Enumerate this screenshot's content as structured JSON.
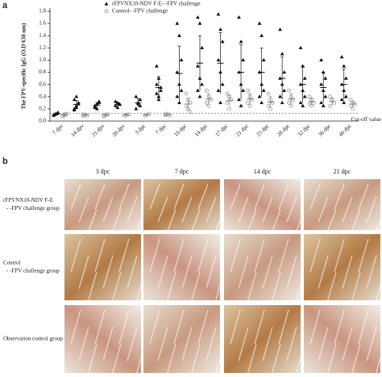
{
  "panel_a_label": "a",
  "chart_data": {
    "type": "dot",
    "ylabel": "The FPV-specific IgG (O.D 630 nm)",
    "categories": [
      "7 dpv",
      "14 dpv",
      "21 dpv",
      "28 dpv",
      "3 dpc",
      "7 dpc",
      "10 dpc",
      "14 dpc",
      "17 dpc",
      "21 dpc",
      "25 dpc",
      "28 dpc",
      "32 dpc",
      "36 dpc",
      "40 dpc"
    ],
    "ylim": [
      0,
      1.8
    ],
    "yticks": [
      {
        "value": 0,
        "label": "0.0"
      },
      0.2,
      0.4,
      0.6,
      0.8,
      {
        "value": 1,
        "label": "1.0"
      },
      1.2,
      1.4,
      1.6,
      1.8
    ],
    "cutoff": {
      "value": 0.13,
      "label": "Cut-off value"
    },
    "series": [
      {
        "name": "rFPVNX10-NDV F-E- -FPV challenge",
        "marker": "triangle",
        "color": "#111111",
        "values": [
          [
            0.1,
            0.12,
            0.14,
            0.09,
            0.11,
            0.13
          ],
          [
            0.2,
            0.25,
            0.3,
            0.35,
            0.22,
            0.28,
            0.18,
            0.4
          ],
          [
            0.22,
            0.28,
            0.3,
            0.25,
            0.2,
            0.32
          ],
          [
            0.25,
            0.3,
            0.28,
            0.32,
            0.22,
            0.27
          ],
          [
            0.2,
            0.3,
            0.35,
            0.4,
            0.28,
            0.25
          ],
          [
            0.9,
            0.7,
            0.5,
            0.45,
            0.4,
            0.55,
            0.6,
            0.35
          ],
          [
            1.6,
            1.4,
            1.0,
            0.8,
            0.6,
            0.5,
            0.4,
            0.3
          ],
          [
            1.7,
            1.6,
            1.2,
            0.9,
            0.7,
            0.6,
            0.5,
            0.4
          ],
          [
            1.75,
            1.5,
            1.3,
            1.0,
            0.8,
            0.6,
            0.5,
            0.3
          ],
          [
            1.7,
            1.3,
            1.0,
            0.8,
            0.6,
            0.5,
            0.35,
            0.25
          ],
          [
            1.6,
            1.4,
            1.0,
            0.8,
            0.6,
            0.5,
            0.4,
            0.3
          ],
          [
            1.5,
            1.1,
            0.8,
            0.7,
            0.6,
            0.5,
            0.4,
            0.3
          ],
          [
            1.2,
            0.9,
            0.7,
            0.6,
            0.5,
            0.4,
            0.3,
            0.25
          ],
          [
            1.0,
            0.8,
            0.7,
            0.6,
            0.5,
            0.4,
            0.3,
            0.25
          ],
          [
            1.05,
            0.9,
            0.7,
            0.6,
            0.5,
            0.4,
            0.35,
            0.3
          ]
        ],
        "means": [
          0.11,
          0.27,
          0.26,
          0.27,
          0.3,
          0.55,
          0.78,
          0.95,
          0.95,
          0.8,
          0.8,
          0.7,
          0.6,
          0.55,
          0.6
        ],
        "errors": [
          0.02,
          0.07,
          0.04,
          0.03,
          0.07,
          0.18,
          0.45,
          0.45,
          0.5,
          0.45,
          0.4,
          0.35,
          0.3,
          0.25,
          0.25
        ]
      },
      {
        "name": "Control- -FPV challenge",
        "marker": "circle",
        "color": "#888888",
        "values": [
          [
            0.08,
            0.1,
            0.12,
            0.09,
            0.11
          ],
          [
            0.08,
            0.1,
            0.09,
            0.11
          ],
          [
            0.09,
            0.1,
            0.11,
            0.08
          ],
          [
            0.09,
            0.1,
            0.11
          ],
          [
            0.09,
            0.1,
            0.12
          ],
          [
            0.1,
            0.12,
            0.09,
            0.11
          ],
          [
            0.45,
            0.35,
            0.3,
            0.25,
            0.2,
            0.15
          ],
          [
            0.5,
            0.4,
            0.35,
            0.3,
            0.25
          ],
          [
            0.45,
            0.4,
            0.35,
            0.3,
            0.2
          ],
          [
            0.5,
            0.4,
            0.35,
            0.3,
            0.25
          ],
          [
            0.45,
            0.35,
            0.3,
            0.25,
            0.2
          ],
          [
            0.5,
            0.4,
            0.35,
            0.3,
            0.25
          ],
          [
            0.4,
            0.35,
            0.3,
            0.28,
            0.25
          ],
          [
            0.4,
            0.35,
            0.3,
            0.25
          ],
          [
            0.35,
            0.3,
            0.28,
            0.25,
            0.2
          ]
        ],
        "means": [
          0.1,
          0.1,
          0.1,
          0.1,
          0.1,
          0.1,
          0.28,
          0.36,
          0.34,
          0.36,
          0.31,
          0.36,
          0.32,
          0.32,
          0.28
        ],
        "errors": [
          0.01,
          0.01,
          0.01,
          0.01,
          0.01,
          0.01,
          0.1,
          0.09,
          0.09,
          0.09,
          0.09,
          0.09,
          0.06,
          0.06,
          0.05
        ]
      }
    ]
  },
  "panel_b": {
    "label": "b",
    "columns": [
      "3 dpc",
      "7 dpc",
      "14 dpc",
      "21 dpc"
    ],
    "rows": [
      [
        "rFPVNX10-NDV F-E",
        "- -FPV challenge group"
      ],
      [
        "Control",
        "- -FPV challenge group"
      ],
      [
        "Observation control group"
      ]
    ]
  }
}
